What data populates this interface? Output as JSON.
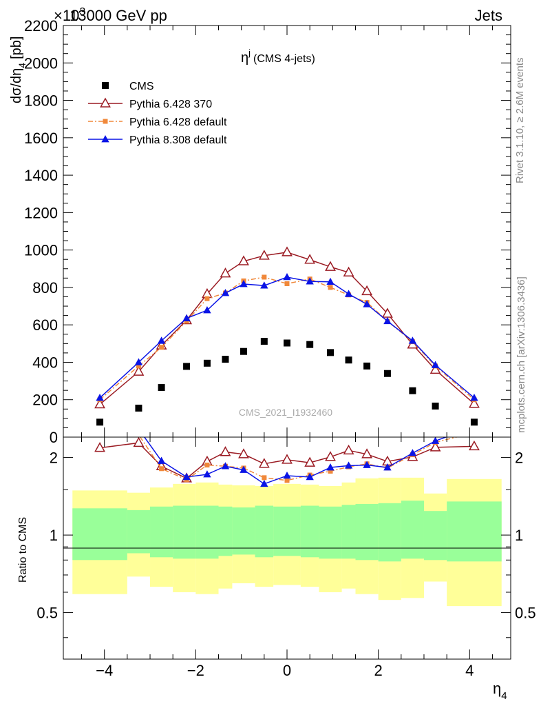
{
  "header": {
    "left_multiplier": "×10",
    "left_exponent": "3",
    "left": "13000 GeV pp",
    "right": "Jets"
  },
  "side_text": {
    "rivet": "Rivet 3.1.10, ≥ 2.6M events",
    "mcplots": "mcplots.cern.ch [arXiv:1306.3436]"
  },
  "analysis_label": "CMS_2021_I1932460",
  "colors": {
    "cms": "#000000",
    "pythia6_370": "#9b1b23",
    "pythia6_default": "#f0883a",
    "pythia8_default": "#0a14e6",
    "band_inner": "#99ff99",
    "band_outer": "#ffff99"
  },
  "chart_data": [
    {
      "type": "scatter",
      "panel": "main",
      "title": "η^j (CMS 4-jets)",
      "title_main": "η",
      "title_sup": "j",
      "title_rest": "(CMS 4-jets)",
      "ylabel": "dσ/dη",
      "ylabel_sub": "4",
      "ylabel_unit": "[pb]",
      "ylim": [
        0,
        2200
      ],
      "yticks": [
        0,
        200,
        400,
        600,
        800,
        1000,
        1200,
        1400,
        1600,
        1800,
        2000,
        2200
      ],
      "ytick_labels": [
        "0",
        "200",
        "400",
        "600",
        "800",
        "1000",
        "1200",
        "1400",
        "1600",
        "1800",
        "2000",
        "2200"
      ],
      "xlim": [
        -4.9,
        4.9
      ],
      "legend_position": "top-left",
      "x": [
        -4.1,
        -3.25,
        -2.75,
        -2.2,
        -1.75,
        -1.35,
        -0.95,
        -0.5,
        0,
        0.5,
        0.95,
        1.35,
        1.75,
        2.2,
        2.75,
        3.25,
        4.1
      ],
      "series": [
        {
          "name": "CMS",
          "style": "square",
          "values": [
            80,
            155,
            265,
            378,
            395,
            416,
            458,
            512,
            503,
            495,
            452,
            412,
            380,
            340,
            248,
            166,
            80
          ]
        },
        {
          "name": "Pythia 6.428 370",
          "style": "line-open-triangle",
          "values": [
            175,
            350,
            490,
            625,
            765,
            875,
            940,
            970,
            988,
            948,
            910,
            880,
            780,
            660,
            495,
            360,
            178
          ]
        },
        {
          "name": "Pythia 6.428 default",
          "style": "dashdot-square",
          "values": [
            200,
            380,
            480,
            620,
            740,
            770,
            835,
            855,
            820,
            845,
            800,
            760,
            720,
            620,
            510,
            380,
            200
          ]
        },
        {
          "name": "Pythia 8.308 default",
          "style": "line-filled-triangle",
          "values": [
            210,
            400,
            515,
            635,
            678,
            770,
            818,
            810,
            855,
            832,
            830,
            765,
            710,
            620,
            515,
            385,
            210
          ]
        }
      ]
    },
    {
      "type": "line",
      "panel": "ratio",
      "ylabel": "Ratio to CMS",
      "yscale": "log",
      "ylim": [
        0.33,
        2.4
      ],
      "yticks": [
        0.5,
        1,
        2
      ],
      "ytick_labels": [
        "0.5",
        "1",
        "2"
      ],
      "xlabel": "η",
      "xlabel_sub": "4",
      "xlim": [
        -4.9,
        4.9
      ],
      "xticks": [
        -4,
        -2,
        0,
        2,
        4
      ],
      "xtick_labels": [
        "−4",
        "−2",
        "0",
        "2",
        "4"
      ],
      "x": [
        -4.1,
        -3.25,
        -2.75,
        -2.2,
        -1.75,
        -1.35,
        -0.95,
        -0.5,
        0,
        0.5,
        0.95,
        1.35,
        1.75,
        2.2,
        2.75,
        3.25,
        4.1
      ],
      "bin_edges": [
        -4.7,
        -3.5,
        -3.0,
        -2.5,
        -2.0,
        -1.5,
        -1.2,
        -0.7,
        -0.3,
        0.3,
        0.7,
        1.2,
        1.5,
        2.0,
        2.5,
        3.0,
        3.5,
        4.7
      ],
      "band_inner": [
        [
          0.8,
          1.27
        ],
        [
          0.85,
          1.25
        ],
        [
          0.82,
          1.29
        ],
        [
          0.81,
          1.3
        ],
        [
          0.81,
          1.3
        ],
        [
          0.83,
          1.29
        ],
        [
          0.84,
          1.28
        ],
        [
          0.82,
          1.3
        ],
        [
          0.83,
          1.29
        ],
        [
          0.82,
          1.3
        ],
        [
          0.81,
          1.29
        ],
        [
          0.81,
          1.31
        ],
        [
          0.8,
          1.32
        ],
        [
          0.79,
          1.33
        ],
        [
          0.81,
          1.36
        ],
        [
          0.8,
          1.24
        ],
        [
          0.79,
          1.35
        ]
      ],
      "band_outer": [
        [
          0.59,
          1.49
        ],
        [
          0.69,
          1.46
        ],
        [
          0.63,
          1.53
        ],
        [
          0.6,
          1.58
        ],
        [
          0.59,
          1.6
        ],
        [
          0.62,
          1.57
        ],
        [
          0.65,
          1.56
        ],
        [
          0.63,
          1.55
        ],
        [
          0.64,
          1.58
        ],
        [
          0.63,
          1.57
        ],
        [
          0.6,
          1.55
        ],
        [
          0.62,
          1.6
        ],
        [
          0.59,
          1.66
        ],
        [
          0.56,
          1.67
        ],
        [
          0.57,
          1.67
        ],
        [
          0.66,
          1.45
        ],
        [
          0.53,
          1.65
        ]
      ],
      "series": [
        {
          "name": "Pythia 6.428 370",
          "values": [
            2.18,
            2.28,
            1.85,
            1.66,
            1.93,
            2.1,
            2.06,
            1.89,
            1.96,
            1.91,
            2.01,
            2.13,
            2.06,
            1.93,
            2.01,
            2.19,
            2.21
          ]
        },
        {
          "name": "Pythia 6.428 default",
          "values": [
            2.5,
            2.45,
            1.81,
            1.64,
            1.87,
            1.85,
            1.82,
            1.67,
            1.63,
            1.71,
            1.77,
            1.84,
            1.89,
            1.82,
            2.05,
            2.29,
            2.5
          ]
        },
        {
          "name": "Pythia 8.308 default",
          "values": [
            2.63,
            2.58,
            1.94,
            1.68,
            1.72,
            1.85,
            1.79,
            1.58,
            1.7,
            1.68,
            1.83,
            1.86,
            1.87,
            1.83,
            2.08,
            2.32,
            2.63
          ]
        }
      ]
    }
  ]
}
